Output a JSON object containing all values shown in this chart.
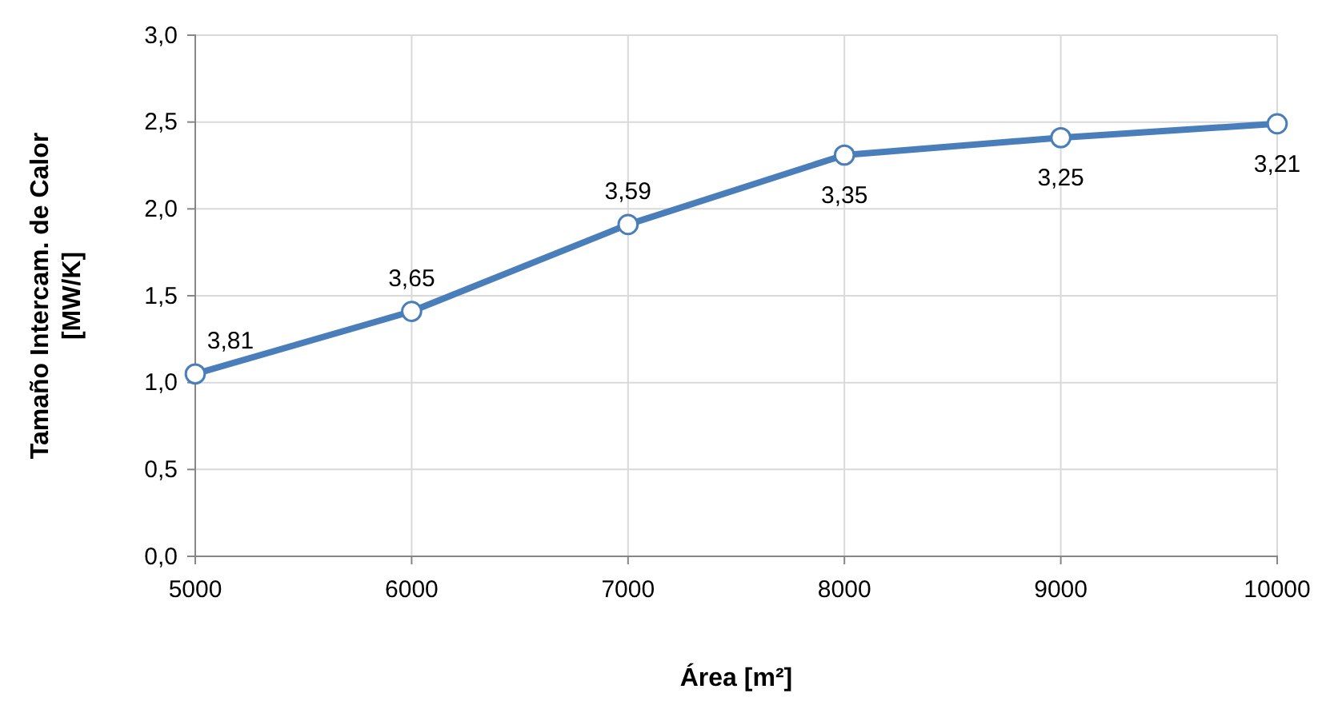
{
  "chart_data": {
    "type": "line",
    "xlabel": "Área [m²]",
    "ylabel": "Tamaño Intercam. de Calor [MW/K]",
    "x": [
      5000,
      6000,
      7000,
      8000,
      9000,
      10000
    ],
    "series": [
      {
        "color": "#4a7ebb",
        "values": [
          1.05,
          1.41,
          1.91,
          2.31,
          2.41,
          2.49
        ]
      }
    ],
    "xlim": [
      5000,
      10000
    ],
    "xticks": [
      5000,
      6000,
      7000,
      8000,
      9000,
      10000
    ],
    "ylim": [
      0,
      3
    ],
    "yticks": [
      {
        "value": 0,
        "label": "0,0"
      },
      {
        "value": 0.5,
        "label": "0,5"
      },
      {
        "value": 1,
        "label": "1,0"
      },
      {
        "value": 1.5,
        "label": "1,5"
      },
      {
        "value": 2,
        "label": "2,0"
      },
      {
        "value": 2.5,
        "label": "2,5"
      },
      {
        "value": 3,
        "label": "3,0"
      }
    ],
    "grid": true,
    "marker": "circle",
    "line_style": "solid",
    "annotations": [
      {
        "text": "3,81",
        "x": 5000,
        "y": 1.05
      },
      {
        "text": "3,65",
        "x": 6000,
        "y": 1.41
      },
      {
        "text": "3,59",
        "x": 7000,
        "y": 1.91
      },
      {
        "text": "3,35",
        "x": 8000,
        "y": 2.31
      },
      {
        "text": "3,25",
        "x": 9000,
        "y": 2.41
      },
      {
        "text": "3,21",
        "x": 10000,
        "y": 2.49
      }
    ]
  }
}
